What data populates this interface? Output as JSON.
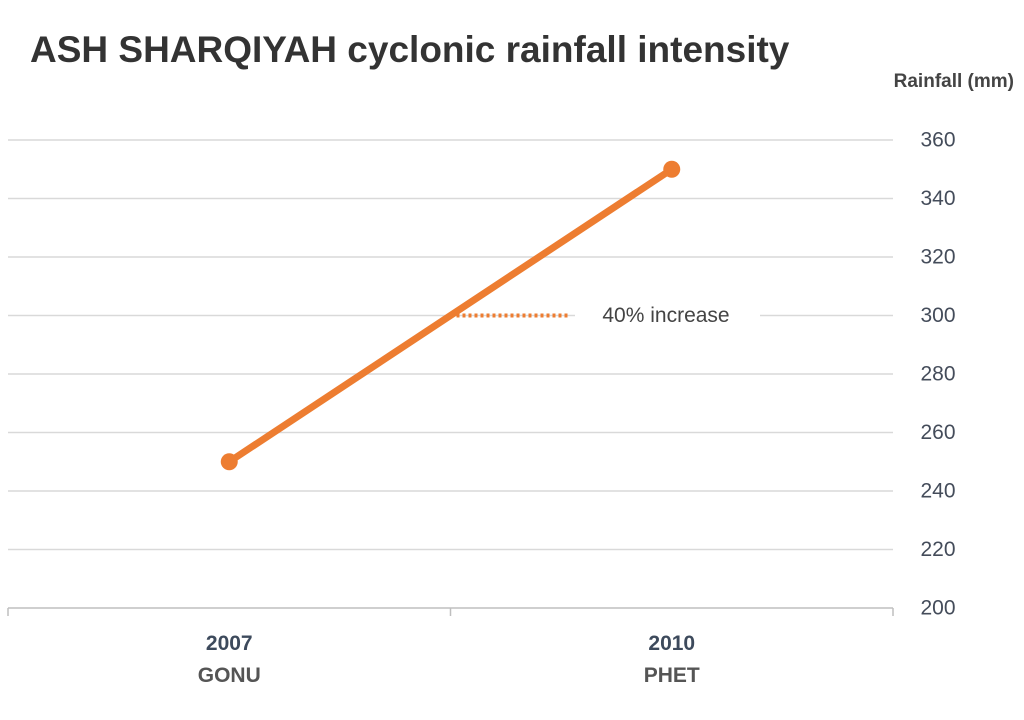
{
  "chart_data": {
    "type": "line",
    "title": "ASH SHARQIYAH cyclonic rainfall intensity",
    "ylabel": "Rainfall (mm)",
    "xlabel": "",
    "ylim": [
      200,
      360
    ],
    "yticks": [
      200,
      220,
      240,
      260,
      280,
      300,
      320,
      340,
      360
    ],
    "y_axis_position": "right",
    "grid": true,
    "categories": [
      "2007",
      "2010"
    ],
    "category_sublabels": [
      "GONU",
      "PHET"
    ],
    "series": [
      {
        "values": [
          250,
          350
        ],
        "color": "#ed7d31"
      }
    ],
    "annotation": {
      "text": "40% increase",
      "y": 300,
      "style": "dotted",
      "color": "#ed7d31"
    }
  }
}
